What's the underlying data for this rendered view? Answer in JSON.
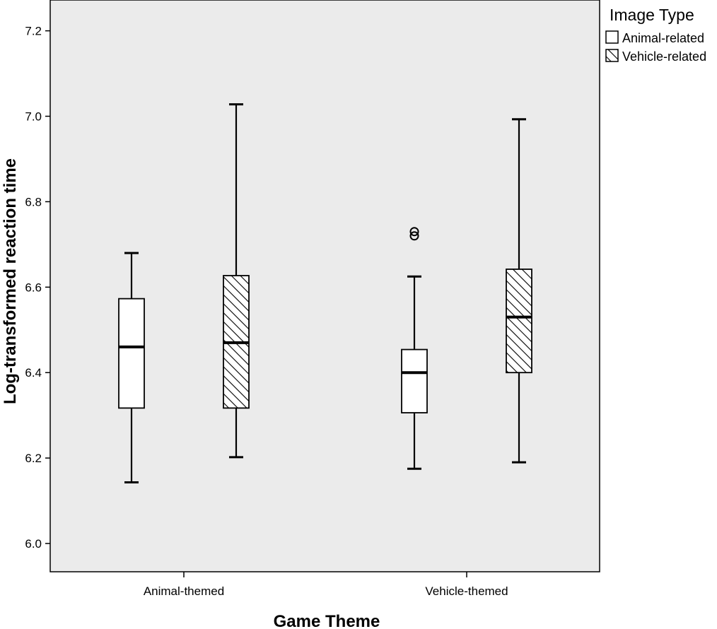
{
  "chart_data": {
    "type": "boxplot",
    "xlabel": "Game Theme",
    "ylabel": "Log-transformed reaction time",
    "ylim": [
      5.95,
      7.27
    ],
    "yticks": [
      "6.0",
      "6.2",
      "6.4",
      "6.6",
      "6.8",
      "7.0",
      "7.2"
    ],
    "categories": [
      "Animal-themed",
      "Vehicle-themed"
    ],
    "grid": false,
    "legend": {
      "title": "Image Type",
      "placement": "top-right outside plot",
      "entries": [
        {
          "label": "Animal-related",
          "fill": "plain"
        },
        {
          "label": "Vehicle-related",
          "fill": "hatched"
        }
      ]
    },
    "series": [
      {
        "name": "Animal-related",
        "boxes": [
          {
            "category": "Animal-themed",
            "min": 6.143,
            "q1": 6.317,
            "median": 6.46,
            "q3": 6.573,
            "max": 6.68,
            "outliers": []
          },
          {
            "category": "Vehicle-themed",
            "min": 6.175,
            "q1": 6.306,
            "median": 6.4,
            "q3": 6.454,
            "max": 6.625,
            "outliers": [
              6.72,
              6.73
            ]
          }
        ]
      },
      {
        "name": "Vehicle-related",
        "boxes": [
          {
            "category": "Animal-themed",
            "min": 6.202,
            "q1": 6.317,
            "median": 6.47,
            "q3": 6.627,
            "max": 7.028,
            "outliers": []
          },
          {
            "category": "Vehicle-themed",
            "min": 6.19,
            "q1": 6.4,
            "median": 6.53,
            "q3": 6.642,
            "max": 6.993,
            "outliers": []
          }
        ]
      }
    ],
    "colors": {
      "plot_background": "#ebebeb",
      "box_fill": "#ffffff",
      "stroke": "#000000"
    }
  }
}
